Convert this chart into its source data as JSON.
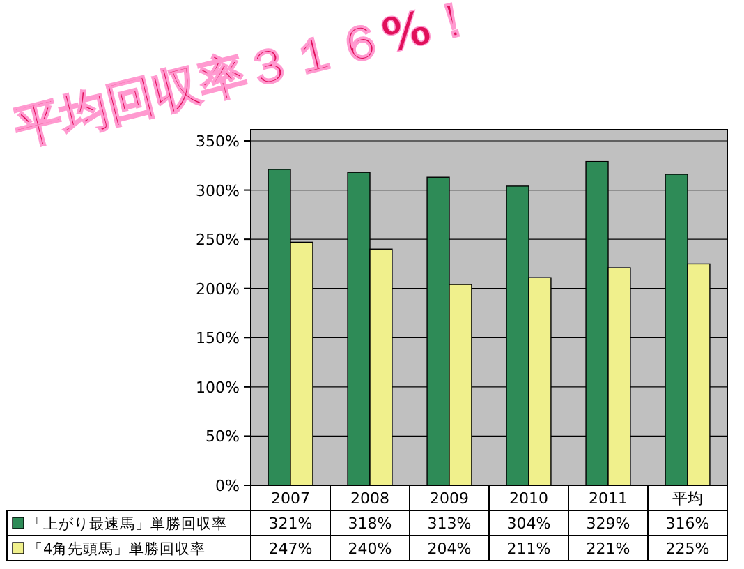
{
  "chart_data": {
    "type": "bar",
    "title": "平均回収率３１６%！",
    "categories": [
      "2007",
      "2008",
      "2009",
      "2010",
      "2011",
      "平均"
    ],
    "series": [
      {
        "name": "「上がり最速馬」単勝回収率",
        "color": "#2e8b57",
        "values": [
          321,
          318,
          313,
          304,
          329,
          316
        ],
        "value_labels": [
          "321%",
          "318%",
          "313%",
          "304%",
          "329%",
          "316%"
        ]
      },
      {
        "name": "「4角先頭馬」単勝回収率",
        "color": "#f0f08c",
        "values": [
          247,
          240,
          204,
          211,
          221,
          225
        ],
        "value_labels": [
          "247%",
          "240%",
          "204%",
          "211%",
          "221%",
          "225%"
        ]
      }
    ],
    "ylim": [
      0,
      350
    ],
    "yticks": [
      {
        "value": 0,
        "label": "0%"
      },
      {
        "value": 50,
        "label": "50%"
      },
      {
        "value": 100,
        "label": "100%"
      },
      {
        "value": 150,
        "label": "150%"
      },
      {
        "value": 200,
        "label": "200%"
      },
      {
        "value": 250,
        "label": "250%"
      },
      {
        "value": 300,
        "label": "300%"
      },
      {
        "value": 350,
        "label": "350%"
      }
    ],
    "grid": "y",
    "legend": "bottom"
  }
}
